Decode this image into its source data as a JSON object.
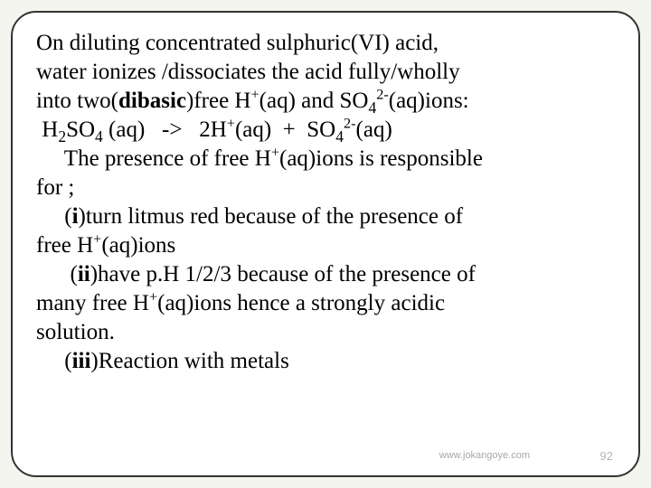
{
  "slide": {
    "line1_a": "On  diluting concentrated  sulphuric(VI) acid,",
    "line2_a": "water ionizes /dissociates the acid fully/wholly",
    "line3_a": "into two(",
    "line3_bold": "dibasic",
    "line3_b": ")free H",
    "line3_c": "(aq) and SO",
    "line3_d": "(aq)ions:",
    "line4_a": " H",
    "line4_b": "SO",
    "line4_c": " (aq)   ->   2H",
    "line4_d": "(aq)  +  SO",
    "line4_e": "(aq)",
    "line5_a": "     The presence of free H",
    "line5_b": "(aq)ions is responsible",
    "line6_a": "for ;",
    "line7_a": "     (",
    "line7_bold": "i",
    "line7_b": ")turn litmus red because of the presence of",
    "line8_a": "free H",
    "line8_b": "(aq)ions",
    "line9_a": "      (",
    "line9_bold": "ii",
    "line9_b": ")have p.H 1/2/3 because of the presence of",
    "line10_a": "many free H",
    "line10_b": "(aq)ions hence a strongly acidic",
    "line11_a": "solution.",
    "line12_a": "     (",
    "line12_bold": "iii",
    "line12_b": ")Reaction with metals",
    "sup_plus": "+",
    "sup_2minus": "2-",
    "sub_2": "2",
    "sub_4": "4"
  },
  "footer": {
    "url": "www.jokangoye.com",
    "page": "92"
  },
  "colors": {
    "background": "#f5f5f0",
    "border": "#333333",
    "text": "#000000",
    "footer_text": "#a8a8a0"
  }
}
